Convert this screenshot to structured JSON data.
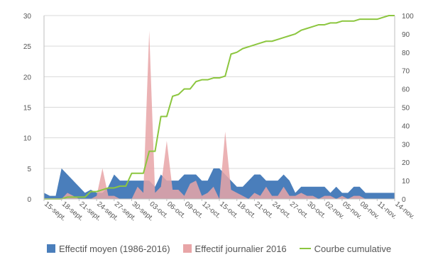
{
  "chart_data": {
    "type": "area",
    "title": "",
    "xlabel": "",
    "ylabel": "",
    "ylim": [
      0,
      30
    ],
    "y_ticks": [
      0,
      5,
      10,
      15,
      20,
      25,
      30
    ],
    "y2lim": [
      0,
      100
    ],
    "y2_ticks": [
      0,
      10,
      20,
      30,
      40,
      50,
      60,
      70,
      80,
      90,
      100
    ],
    "grid": "horizontal",
    "legend": "bottom",
    "x_tick_labels": [
      "15-sept.",
      "18-sept.",
      "21-sept.",
      "24-sept.",
      "27-sept.",
      "30-sept.",
      "03-oct.",
      "06-oct.",
      "09-oct.",
      "12-oct.",
      "15-oct.",
      "18-oct.",
      "21-oct.",
      "24-oct.",
      "27-oct.",
      "30-oct.",
      "02-nov.",
      "05-nov.",
      "08-nov.",
      "11-nov.",
      "14-nov."
    ],
    "series": [
      {
        "name": "Effectif moyen (1986-2016)",
        "type": "area",
        "axis": "left",
        "color": "#4a7ebb",
        "values": [
          1,
          0.5,
          0.5,
          5,
          4,
          3,
          2,
          1,
          1.5,
          1,
          1,
          2,
          4,
          3,
          3,
          3,
          3,
          3,
          3,
          2,
          4,
          3,
          3,
          3,
          4,
          4,
          4,
          3,
          3,
          5,
          5,
          4,
          3,
          2,
          2,
          3,
          4,
          4,
          3,
          3,
          3,
          4,
          3,
          1,
          2,
          2,
          2,
          2,
          2,
          1,
          2,
          1,
          1,
          2,
          2,
          1,
          1,
          1,
          1,
          1,
          1
        ]
      },
      {
        "name": "Effectif journalier 2016",
        "type": "area",
        "axis": "left",
        "color": "#e8a5a7",
        "values": [
          0,
          0,
          0,
          0,
          1,
          0.5,
          0,
          0,
          0,
          0.5,
          5,
          0.5,
          0.5,
          0,
          0,
          0,
          2,
          1,
          27.5,
          1,
          2,
          9.5,
          1.5,
          1.5,
          0.5,
          2.5,
          3,
          0.5,
          1,
          2,
          0,
          11,
          1.5,
          1,
          0.5,
          0,
          1,
          0.5,
          2,
          0.5,
          0.5,
          2,
          0.5,
          0.5,
          1,
          0.5,
          0.5,
          0,
          0.5,
          0.5,
          0,
          0.5,
          0,
          0.5,
          0.5,
          0,
          0,
          0,
          0,
          0,
          0
        ]
      },
      {
        "name": "Courbe cumulative",
        "type": "line",
        "axis": "right",
        "color": "#8cc63f",
        "values": [
          0,
          0,
          0,
          0,
          1,
          1,
          1,
          1,
          4,
          4,
          5,
          6,
          6,
          7,
          7,
          14,
          14,
          14,
          26,
          26,
          45,
          45,
          56,
          57,
          60,
          60,
          64,
          65,
          65,
          66,
          66,
          67,
          79,
          80,
          82,
          83,
          84,
          85,
          86,
          86,
          87,
          88,
          89,
          90,
          92,
          93,
          94,
          95,
          95,
          96,
          96,
          97,
          97,
          97,
          98,
          98,
          98,
          98,
          99,
          100,
          100
        ]
      }
    ]
  }
}
